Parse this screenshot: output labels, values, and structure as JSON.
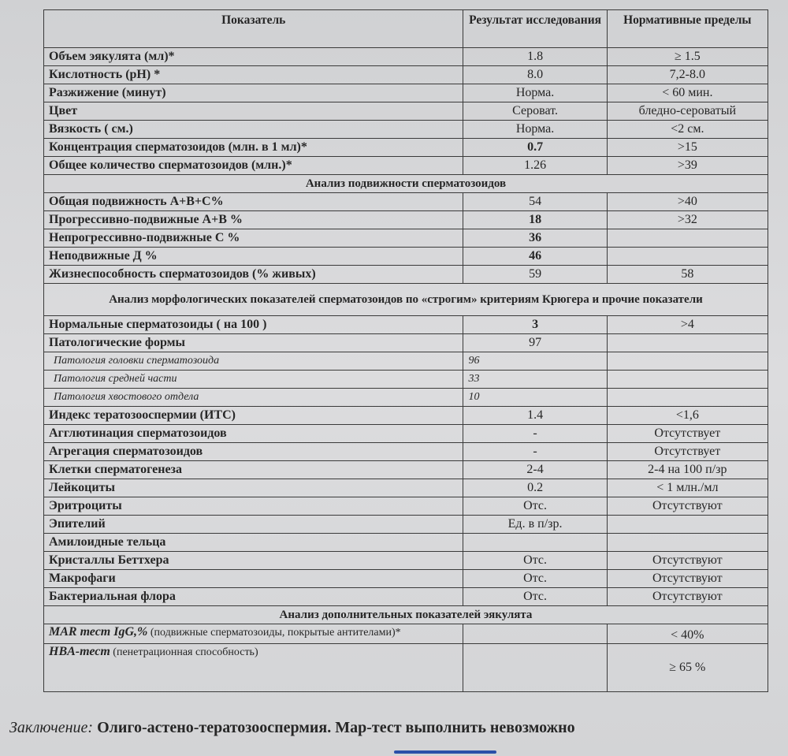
{
  "header": {
    "indicator": "Показатель",
    "result": "Результат исследования",
    "norm": "Нормативные пределы"
  },
  "basic_rows": [
    {
      "label": "Объем  эякулята (мл)*",
      "result": "1.8",
      "norm": "≥ 1.5"
    },
    {
      "label": "Кислотность (pH) *",
      "result": "8.0",
      "norm": "7,2-8.0"
    },
    {
      "label": "Разжижение (минут)",
      "result": "Норма.",
      "norm": "< 60 мин."
    },
    {
      "label": "Цвет",
      "result": "Сероват.",
      "norm": "бледно-сероватый"
    },
    {
      "label": "Вязкость ( см.)",
      "result": "Норма.",
      "norm": "<2 см."
    },
    {
      "label": "Концентрация сперматозоидов (млн. в 1 мл)*",
      "result": "0.7",
      "norm": ">15",
      "bold": true
    },
    {
      "label": "Общее количество сперматозоидов (млн.)*",
      "result": "1.26",
      "norm": ">39"
    }
  ],
  "motility_section": "Анализ подвижности сперматозоидов",
  "motility_rows": [
    {
      "label": "Общая подвижность А+В+С%",
      "result": "54",
      "norm": ">40"
    },
    {
      "label": "Прогрессивно-подвижные А+В %",
      "result": "18",
      "norm": ">32",
      "bold": true
    },
    {
      "label": "Непрогрессивно-подвижные С %",
      "result": "36",
      "norm": "",
      "bold": true
    },
    {
      "label": "Неподвижные Д %",
      "result": "46",
      "norm": "",
      "bold": true
    },
    {
      "label": "Жизнеспособность сперматозоидов (% живых)",
      "result": "59",
      "norm": "58"
    }
  ],
  "morphology_section": "Анализ морфологических показателей сперматозоидов по «строгим» критериям Крюгера и прочие показатели",
  "morphology_rows": [
    {
      "label": "Нормальные сперматозоиды  ( на 100  )",
      "result": "3",
      "norm": ">4",
      "bold": true
    },
    {
      "label": "Патологические формы",
      "result": "97",
      "norm": ""
    },
    {
      "label": "Патология головки сперматозоида",
      "result": "96",
      "norm": "",
      "sub": true
    },
    {
      "label": "Патология средней части",
      "result": "33",
      "norm": "",
      "sub": true
    },
    {
      "label": "Патология хвостового отдела",
      "result": "10",
      "norm": "",
      "sub": true
    },
    {
      "label": "Индекс тератозооспермии (ИТС)",
      "result": "1.4",
      "norm": "<1,6"
    },
    {
      "label": "Агглютинация сперматозоидов",
      "result": "-",
      "norm": "Отсутствует"
    },
    {
      "label": "Агрегация сперматозоидов",
      "result": "-",
      "norm": "Отсутствует"
    },
    {
      "label": "Клетки сперматогенеза",
      "result": "2-4",
      "norm": "2-4 на 100 п/зр"
    },
    {
      "label": "Лейкоциты",
      "result": "0.2",
      "norm": "< 1 млн./мл"
    },
    {
      "label": "Эритроциты",
      "result": "Отс.",
      "norm": "Отсутствуют"
    },
    {
      "label": "Эпителий",
      "result": "Ед. в п/зр.",
      "norm": ""
    },
    {
      "label": "Амилоидные тельца",
      "result": "",
      "norm": ""
    },
    {
      "label": "Кристаллы Беттхера",
      "result": "Отс.",
      "norm": "Отсутствуют"
    },
    {
      "label": "Макрофаги",
      "result": "Отс.",
      "norm": "Отсутствуют"
    },
    {
      "label": "Бактериальная флора",
      "result": "Отс.",
      "norm": "Отсутствуют"
    }
  ],
  "additional_section": "Анализ дополнительных показателей эякулята",
  "additional_rows": [
    {
      "label_main": "MAR тест IgG,%",
      "label_note": " (подвижные сперматозоиды, покрытые антителами)*",
      "result": "",
      "norm": "< 40%"
    },
    {
      "label_main": "HBA-тест",
      "label_note": " (пенетрационная способность)",
      "result": "",
      "norm": "≥ 65 %"
    }
  ],
  "conclusion": {
    "label": "Заключение:",
    "text": " Олиго-астено-тератозооспермия. Мар-тест выполнить невозможно"
  }
}
